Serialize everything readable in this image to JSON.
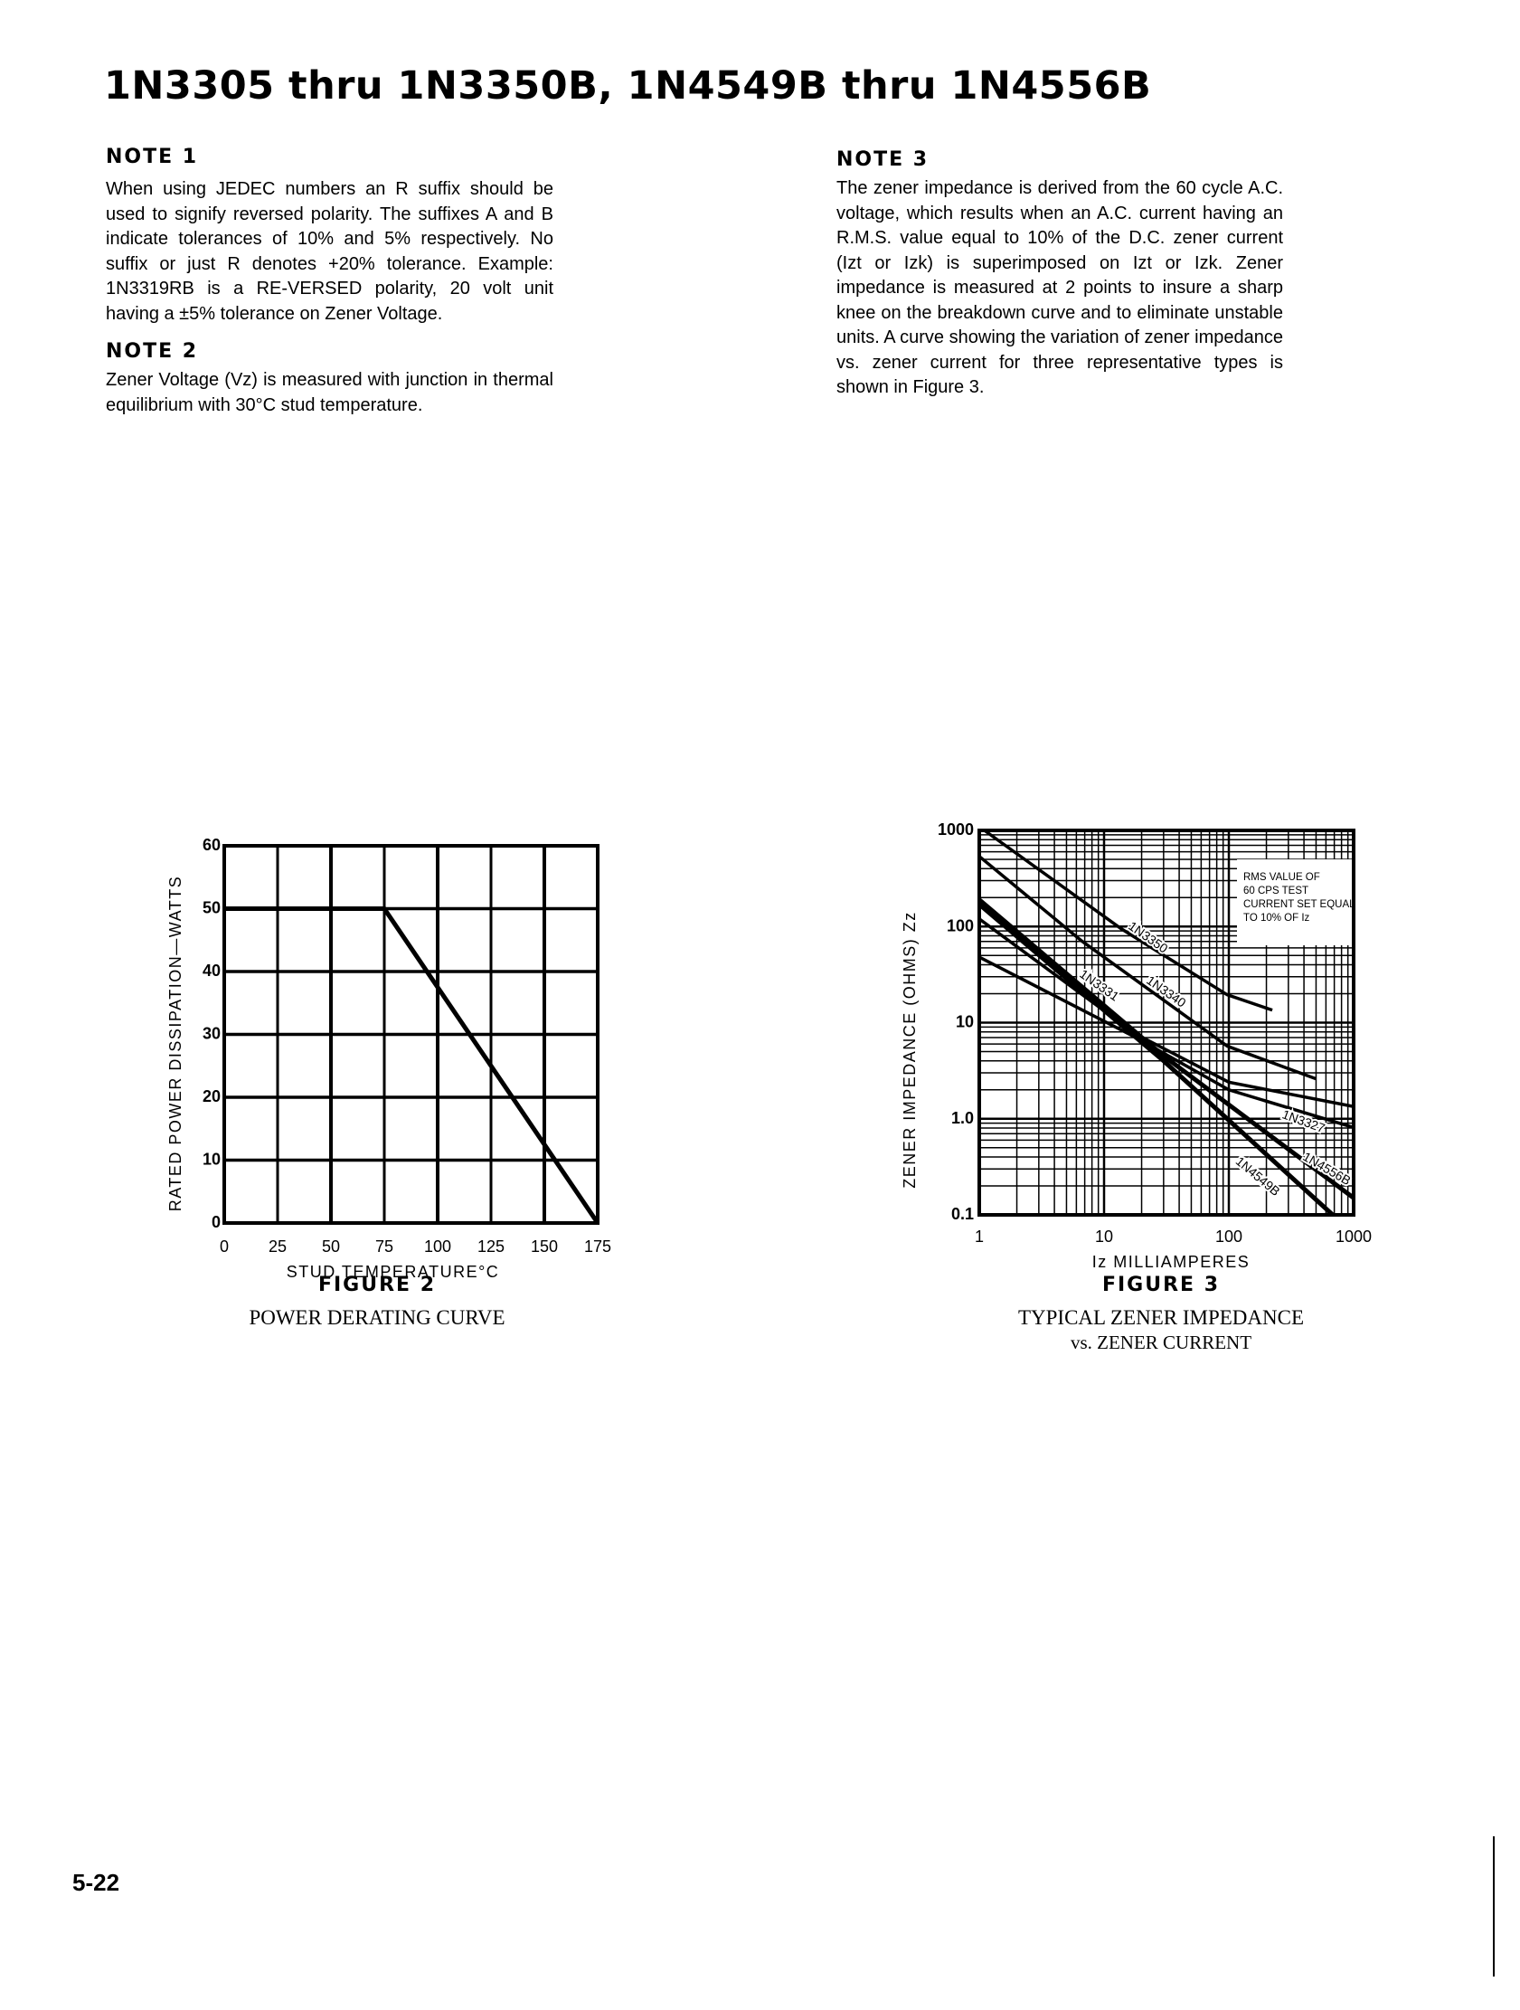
{
  "title": "1N3305 thru 1N3350B, 1N4549B thru 1N4556B",
  "notes": [
    {
      "heading": "NOTE 1",
      "body": "When using JEDEC numbers an R suffix should be used to signify reversed polarity. The suffixes A and B indicate tolerances of 10% and 5% respectively. No suffix or just R denotes +20% tolerance.  Example: 1N3319RB is a RE-VERSED polarity, 20 volt unit having a ±5% tolerance on Zener Voltage."
    },
    {
      "heading": "NOTE 2",
      "body": "Zener Voltage (Vz) is measured with junction in thermal equilibrium with 30°C stud temperature."
    },
    {
      "heading": "NOTE 3",
      "body": "The zener impedance is derived from the 60 cycle A.C. voltage, which results when an A.C. current having an R.M.S. value equal to 10% of the D.C. zener current (Izt or Izk) is superimposed on Izt or Izk.  Zener impedance is measured at 2 points to insure a sharp knee on the breakdown curve and to eliminate unstable units.  A curve showing the variation of zener impedance vs. zener current for three representative types is shown in Figure 3."
    }
  ],
  "figure2": {
    "label": "FIGURE 2",
    "caption": "POWER DERATING CURVE"
  },
  "figure3": {
    "label": "FIGURE 3",
    "caption_line1": "TYPICAL ZENER IMPEDANCE",
    "caption_line2": "vs. ZENER CURRENT",
    "annotation": [
      "RMS VALUE OF",
      "60 CPS TEST",
      "CURRENT SET EQUAL",
      "TO 10% OF Iz"
    ]
  },
  "page_number": "5-22",
  "chart_data": [
    {
      "type": "line",
      "xlabel": "STUD TEMPERATURE°C",
      "ylabel": "RATED POWER DISSIPATION—WATTS",
      "xlim": [
        0,
        175
      ],
      "ylim": [
        0,
        60
      ],
      "grid": true,
      "xticks": [
        "0",
        "25",
        "50",
        "75",
        "100",
        "125",
        "150",
        "175"
      ],
      "yticks": [
        "0",
        "10",
        "20",
        "30",
        "40",
        "50",
        "60"
      ],
      "series": [
        {
          "points": [
            [
              0,
              50
            ],
            [
              75,
              50
            ],
            [
              175,
              0
            ]
          ]
        }
      ]
    },
    {
      "type": "line",
      "xlabel": "Iz MILLIAMPERES",
      "ylabel": "ZENER IMPEDANCE (OHMS) Zz",
      "xscale": "log",
      "yscale": "log",
      "xlim": [
        1,
        1000
      ],
      "ylim": [
        0.1,
        1000
      ],
      "grid": true,
      "xticks": [
        "1",
        "10",
        "100",
        "1000"
      ],
      "yticks": [
        "0.1",
        "1.0",
        "10",
        "100",
        "1000"
      ],
      "series": [
        {
          "name": "1N3350",
          "points": [
            [
              1.1,
              1000
            ],
            [
              13.7,
              95
            ],
            [
              97,
              19.5
            ],
            [
              223,
              13.5
            ]
          ]
        },
        {
          "name": "1N3340",
          "points": [
            [
              1,
              537
            ],
            [
              6.6,
              71
            ],
            [
              97,
              5.7
            ],
            [
              500,
              2.6
            ]
          ]
        },
        {
          "name": "1N3331",
          "points": [
            [
              1,
              120
            ],
            [
              18,
              7.6
            ],
            [
              100,
              2.4
            ],
            [
              1000,
              1.34
            ]
          ]
        },
        {
          "name": "1N3327",
          "points": [
            [
              1,
              48
            ],
            [
              18,
              7
            ],
            [
              100,
              2
            ],
            [
              1000,
              0.81
            ]
          ]
        },
        {
          "name": "1N4556B",
          "points": [
            [
              1,
              190
            ],
            [
              30,
              4.5
            ],
            [
              1000,
              0.15
            ]
          ]
        },
        {
          "name": "1N4549B",
          "points": [
            [
              1,
              170
            ],
            [
              30,
              4
            ],
            [
              680,
              0.1
            ]
          ]
        }
      ]
    }
  ]
}
